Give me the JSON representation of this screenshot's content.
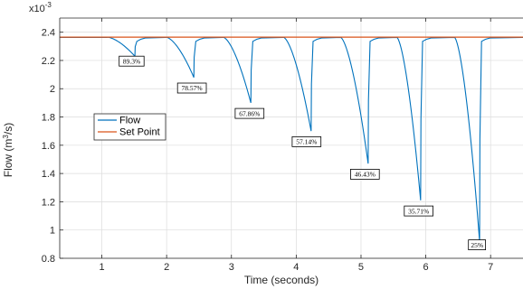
{
  "chart_data": {
    "type": "line",
    "xlabel": "Time (seconds)",
    "ylabel": "Flow (m",
    "ylabel_sup": "3",
    "ylabel_end": "/s)",
    "y_multiplier": "x10",
    "y_multiplier_exp": "-3",
    "xlim": [
      0.35,
      7.5
    ],
    "ylim": [
      0.8,
      2.5
    ],
    "xticks": [
      1,
      2,
      3,
      4,
      5,
      6,
      7
    ],
    "yticks": [
      0.8,
      1,
      1.2,
      1.4,
      1.6,
      1.8,
      2,
      2.2,
      2.4
    ],
    "ytick_labels": [
      "0.8",
      "1",
      "1.2",
      "1.4",
      "1.6",
      "1.8",
      "2",
      "2.2",
      "2.4"
    ],
    "xtick_labels": [
      "1",
      "2",
      "3",
      "4",
      "5",
      "6",
      "7"
    ],
    "grid": true,
    "legend_position": "left",
    "setpoint": 2.365,
    "colors": {
      "flow": "#0072BD",
      "setpoint": "#D95319",
      "grid": "#dcdcdc",
      "axis": "#262626"
    },
    "series": [
      {
        "name": "Flow",
        "color": "#0072BD"
      },
      {
        "name": "Set Point",
        "color": "#D95319"
      }
    ],
    "dips": [
      {
        "start": 1.08,
        "min_x": 1.51,
        "min_y": 2.23,
        "recover_x": 1.55
      },
      {
        "start": 1.99,
        "min_x": 2.42,
        "min_y": 2.08,
        "recover_x": 2.46
      },
      {
        "start": 2.87,
        "min_x": 3.3,
        "min_y": 1.9,
        "recover_x": 3.34
      },
      {
        "start": 3.8,
        "min_x": 4.23,
        "min_y": 1.7,
        "recover_x": 4.27
      },
      {
        "start": 4.68,
        "min_x": 5.11,
        "min_y": 1.47,
        "recover_x": 5.15
      },
      {
        "start": 5.55,
        "min_x": 5.92,
        "min_y": 1.21,
        "recover_x": 5.96
      },
      {
        "start": 6.44,
        "min_x": 6.83,
        "min_y": 0.92,
        "recover_x": 6.87
      }
    ],
    "annotations": [
      {
        "text": "89.3%",
        "x": 1.46,
        "y": 2.195
      },
      {
        "text": "78.57%",
        "x": 2.39,
        "y": 2.005
      },
      {
        "text": "67.86%",
        "x": 3.28,
        "y": 1.825
      },
      {
        "text": "57.14%",
        "x": 4.16,
        "y": 1.625
      },
      {
        "text": "46.43%",
        "x": 5.06,
        "y": 1.395
      },
      {
        "text": "35.71%",
        "x": 5.89,
        "y": 1.135
      },
      {
        "text": "25%",
        "x": 6.79,
        "y": 0.895
      }
    ]
  }
}
